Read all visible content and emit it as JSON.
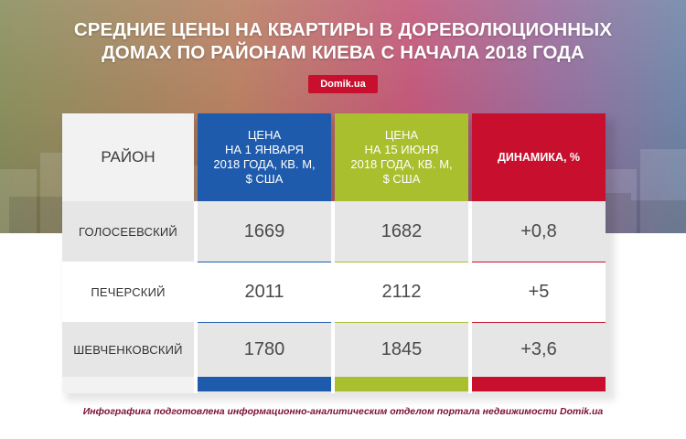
{
  "title_line1": "СРЕДНИЕ ЦЕНЫ НА КВАРТИРЫ В ДОРЕВОЛЮЦИОННЫХ",
  "title_line2": "ДОМАХ ПО РАЙОНАМ КИЕВА С НАЧАЛА 2018 ГОДА",
  "brand": "Domik.ua",
  "footer": "Инфографика подготовлена информационно-аналитическим отделом портала недвижимости Domik.ua",
  "colors": {
    "blue": "#1f5bad",
    "green": "#a9bf2e",
    "red": "#c8102e"
  },
  "chart_data": {
    "type": "table",
    "title": "СРЕДНИЕ ЦЕНЫ НА КВАРТИРЫ В ДОРЕВОЛЮЦИОННЫХ ДОМАХ ПО РАЙОНАМ КИЕВА С НАЧАЛА 2018 ГОДА",
    "columns": [
      "РАЙОН",
      "ЦЕНА\nНА 1 ЯНВАРЯ\n2018 ГОДА, КВ. М,\n$ США",
      "ЦЕНА\nНА 15 ИЮНЯ\n2018 ГОДА, КВ. М,\n$ США",
      "ДИНАМИКА, %"
    ],
    "rows": [
      {
        "district": "ГОЛОСЕЕВСКИЙ",
        "jan": "1669",
        "jun": "1682",
        "change": "+0,8"
      },
      {
        "district": "ПЕЧЕРСКИЙ",
        "jan": "2011",
        "jun": "2112",
        "change": "+5"
      },
      {
        "district": "ШЕВЧЕНКОВСКИЙ",
        "jan": "1780",
        "jun": "1845",
        "change": "+3,6"
      }
    ]
  }
}
